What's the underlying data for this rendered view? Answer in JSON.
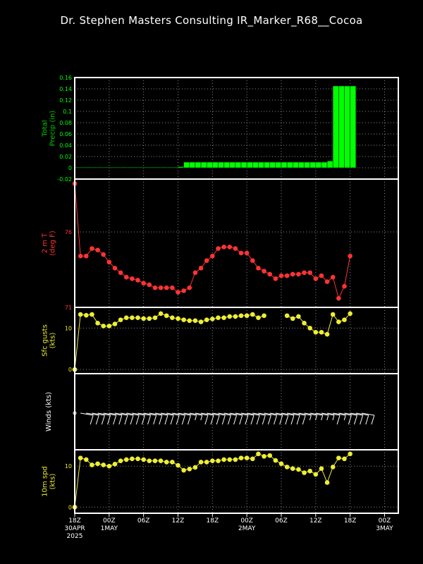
{
  "title": "Dr. Stephen Masters Consulting  IR_Marker_R68__Cocoa",
  "colors": {
    "precip": "#00ff00",
    "precip_label": "#00cc00",
    "temp": "#ff3333",
    "gust": "#eeee33",
    "wind": "#ffffff",
    "grid": "#888888",
    "frame": "#ffffff"
  },
  "x_axis": {
    "ticks": [
      {
        "h": 0,
        "lines": [
          "18Z",
          "30APR",
          "2025"
        ]
      },
      {
        "h": 6,
        "lines": [
          "00Z",
          "1MAY"
        ]
      },
      {
        "h": 12,
        "lines": [
          "06Z"
        ]
      },
      {
        "h": 18,
        "lines": [
          "12Z"
        ]
      },
      {
        "h": 24,
        "lines": [
          "18Z"
        ]
      },
      {
        "h": 30,
        "lines": [
          "00Z",
          "2MAY"
        ]
      },
      {
        "h": 36,
        "lines": [
          "06Z"
        ]
      },
      {
        "h": 42,
        "lines": [
          "12Z"
        ]
      },
      {
        "h": 48,
        "lines": [
          "18Z"
        ]
      },
      {
        "h": 54,
        "lines": [
          "00Z",
          "3MAY"
        ]
      }
    ]
  },
  "chart_data": [
    {
      "type": "bar",
      "panel": "precip",
      "ylabel_lines": [
        "Total",
        "Precip (in)"
      ],
      "ylim": [
        -0.02,
        0.16
      ],
      "yticks": [
        "0.16",
        "0.14",
        "0.12",
        "0.1",
        "0.08",
        "0.06",
        "0.04",
        "0.02",
        "0",
        "-0.02"
      ],
      "x_hours": [
        0,
        1,
        2,
        3,
        4,
        5,
        6,
        7,
        8,
        9,
        10,
        11,
        12,
        13,
        14,
        15,
        16,
        17,
        18,
        19,
        20,
        21,
        22,
        23,
        24,
        25,
        26,
        27,
        28,
        29,
        30,
        31,
        32,
        33,
        34,
        35,
        36,
        37,
        38,
        39,
        40,
        41,
        42,
        43,
        44,
        45,
        46,
        47,
        48
      ],
      "values": [
        0.001,
        0.001,
        0.001,
        0.001,
        0.001,
        0.001,
        0.001,
        0.001,
        0.001,
        0.001,
        0.001,
        0.001,
        0.001,
        0.001,
        0.001,
        0.001,
        0.001,
        0.001,
        0.002,
        0.01,
        0.01,
        0.01,
        0.01,
        0.01,
        0.01,
        0.01,
        0.01,
        0.01,
        0.01,
        0.01,
        0.01,
        0.01,
        0.01,
        0.01,
        0.01,
        0.01,
        0.01,
        0.01,
        0.01,
        0.01,
        0.01,
        0.01,
        0.01,
        0.01,
        0.012,
        0.145,
        0.145,
        0.145,
        0.145
      ]
    },
    {
      "type": "line",
      "panel": "temp",
      "ylabel_lines": [
        "2 m T",
        "(deg F)"
      ],
      "ylim": [
        71,
        79.5
      ],
      "yticks": [
        "76",
        "71"
      ],
      "x_hours": [
        0,
        1,
        2,
        3,
        4,
        5,
        6,
        7,
        8,
        9,
        10,
        11,
        12,
        13,
        14,
        15,
        16,
        17,
        18,
        19,
        20,
        21,
        22,
        23,
        24,
        25,
        26,
        27,
        28,
        29,
        30,
        31,
        32,
        33,
        34,
        35,
        36,
        37,
        38,
        39,
        40,
        41,
        42,
        43,
        44,
        45,
        46,
        47,
        48
      ],
      "values": [
        79.2,
        74.4,
        74.4,
        74.9,
        74.8,
        74.5,
        74.0,
        73.6,
        73.3,
        73.0,
        72.9,
        72.8,
        72.6,
        72.5,
        72.3,
        72.3,
        72.3,
        72.3,
        72.0,
        72.1,
        72.3,
        73.3,
        73.6,
        74.1,
        74.4,
        74.9,
        75.0,
        75.0,
        74.9,
        74.6,
        74.6,
        74.1,
        73.6,
        73.4,
        73.2,
        72.9,
        73.1,
        73.1,
        73.2,
        73.2,
        73.3,
        73.3,
        72.9,
        73.1,
        72.7,
        73.0,
        71.6,
        72.4,
        74.4
      ]
    },
    {
      "type": "scatter",
      "panel": "gust",
      "ylabel_lines": [
        "Sfc gusts",
        "(kts)"
      ],
      "ylim": [
        -1,
        15
      ],
      "yticks": [
        "10",
        "0"
      ],
      "x_hours": [
        0,
        1,
        2,
        3,
        4,
        5,
        6,
        7,
        8,
        9,
        10,
        11,
        12,
        13,
        14,
        15,
        16,
        17,
        18,
        19,
        20,
        21,
        22,
        23,
        24,
        25,
        26,
        27,
        28,
        29,
        30,
        31,
        32,
        33,
        34,
        35,
        36,
        37,
        38,
        39,
        40,
        41,
        42,
        43,
        44,
        45,
        46,
        47,
        48
      ],
      "values": [
        0,
        13.3,
        13.1,
        13.3,
        11.2,
        10.5,
        10.5,
        11.0,
        12.0,
        12.5,
        12.5,
        12.5,
        12.3,
        12.3,
        12.5,
        13.5,
        13.0,
        12.5,
        12.3,
        12.0,
        11.8,
        11.8,
        11.5,
        12.0,
        12.2,
        12.5,
        12.5,
        12.8,
        12.8,
        13.0,
        13.0,
        13.3,
        12.5,
        13.0,
        null,
        null,
        null,
        13.0,
        12.3,
        12.8,
        11.2,
        10.0,
        9.0,
        9.0,
        8.5,
        13.3,
        11.5,
        12.0,
        13.5
      ]
    },
    {
      "type": "wind_barbs",
      "panel": "winds",
      "ylabel_lines": [
        "Winds (kts)"
      ],
      "x_hours": [
        0,
        1,
        2,
        3,
        4,
        5,
        6,
        7,
        8,
        9,
        10,
        11,
        12,
        13,
        14,
        15,
        16,
        17,
        18,
        19,
        20,
        21,
        22,
        23,
        24,
        25,
        26,
        27,
        28,
        29,
        30,
        31,
        32,
        33,
        34,
        35,
        36,
        37,
        38,
        39,
        40,
        41,
        42,
        43,
        44,
        45,
        46,
        47,
        48,
        49,
        50
      ],
      "speed_kts": [
        0,
        12,
        12,
        11,
        10,
        10,
        10,
        11,
        11,
        12,
        12,
        12,
        11,
        11,
        11,
        11,
        11,
        11,
        10,
        9,
        9,
        10,
        10,
        11,
        11,
        11,
        11,
        11,
        12,
        12,
        12,
        12,
        12,
        13,
        13,
        13,
        12,
        11,
        10,
        9,
        9,
        9,
        9,
        9,
        10,
        9,
        10,
        12,
        12,
        13,
        13
      ]
    },
    {
      "type": "scatter",
      "panel": "wspd",
      "ylabel_lines": [
        "10m spd",
        "(kts)"
      ],
      "ylim": [
        -1.5,
        14
      ],
      "yticks": [
        "10",
        "0"
      ],
      "x_hours": [
        0,
        1,
        2,
        3,
        4,
        5,
        6,
        7,
        8,
        9,
        10,
        11,
        12,
        13,
        14,
        15,
        16,
        17,
        18,
        19,
        20,
        21,
        22,
        23,
        24,
        25,
        26,
        27,
        28,
        29,
        30,
        31,
        32,
        33,
        34,
        35,
        36,
        37,
        38,
        39,
        40,
        41,
        42,
        43,
        44,
        45,
        46,
        47,
        48
      ],
      "values": [
        0,
        12.0,
        11.6,
        10.3,
        10.6,
        10.3,
        10.0,
        10.5,
        11.3,
        11.6,
        11.8,
        11.8,
        11.6,
        11.3,
        11.3,
        11.3,
        11.0,
        11.0,
        10.2,
        9.0,
        9.3,
        9.7,
        11.0,
        11.0,
        11.3,
        11.3,
        11.6,
        11.6,
        11.6,
        12.0,
        12.0,
        11.8,
        13.0,
        12.4,
        12.6,
        11.4,
        10.6,
        9.8,
        9.4,
        9.2,
        8.4,
        8.8,
        8.0,
        9.4,
        6.0,
        9.8,
        12.0,
        11.8,
        13.0
      ]
    }
  ]
}
